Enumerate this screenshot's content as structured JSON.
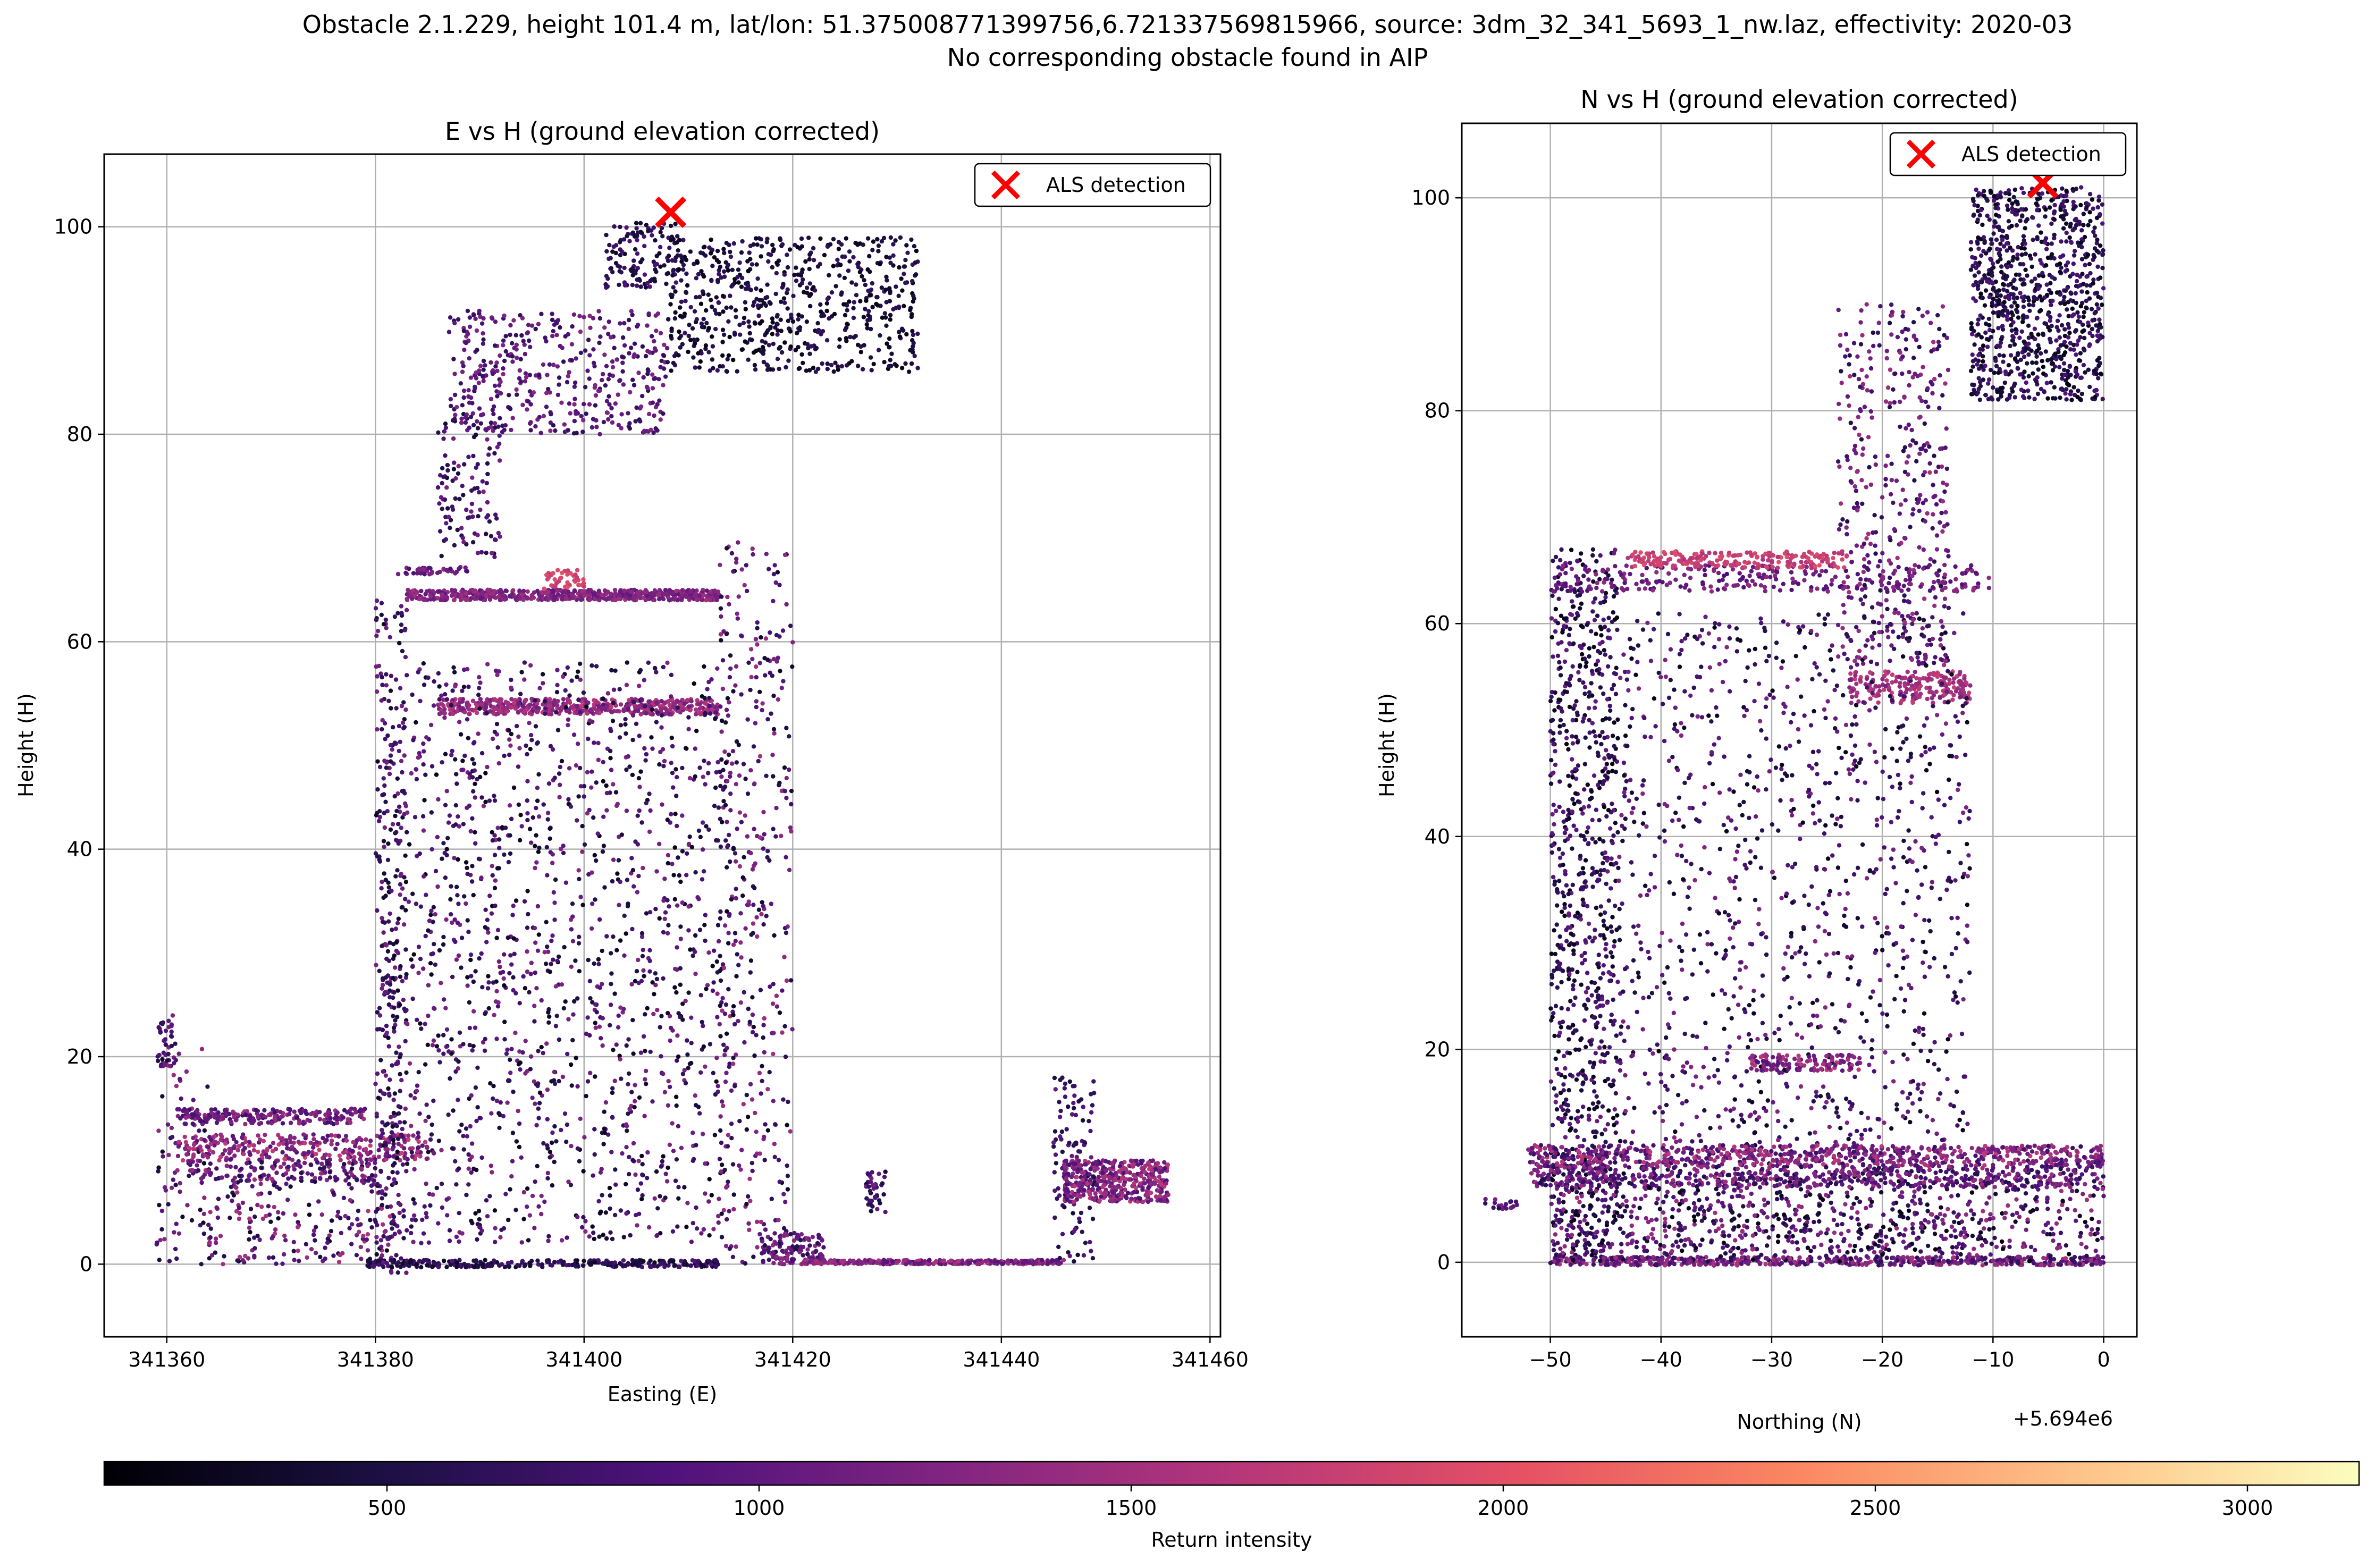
{
  "figure": {
    "title_line1": "Obstacle 2.1.229, height 101.4 m, lat/lon: 51.375008771399756,6.721337569815966, source: 3dm_32_341_5693_1_nw.laz, effectivity: 2020-03",
    "title_line2": "No corresponding obstacle found in AIP"
  },
  "chart_data": [
    {
      "type": "scatter",
      "title": "E vs H (ground elevation corrected)",
      "xlabel": "Easting (E)",
      "ylabel": "Height (H)",
      "xlim": [
        341354,
        341461
      ],
      "ylim": [
        -7,
        107
      ],
      "xticks": [
        341360,
        341380,
        341400,
        341420,
        341440,
        341460
      ],
      "xtick_labels": [
        "341360",
        "341380",
        "341400",
        "341420",
        "341440",
        "341460"
      ],
      "yticks": [
        0,
        20,
        40,
        60,
        80,
        100
      ],
      "ytick_labels": [
        "0",
        "20",
        "40",
        "60",
        "80",
        "100"
      ],
      "grid": true,
      "legend": {
        "position": "top-right",
        "entries": [
          "ALS detection"
        ]
      },
      "detection": {
        "x": 341408.3,
        "y": 101.4,
        "color": "#ff0000",
        "marker": "x"
      },
      "point_clusters": [
        {
          "x": [
            341359,
            341361
          ],
          "y": [
            19,
            24
          ],
          "n": 40,
          "intensity": [
            500,
            1300
          ]
        },
        {
          "x": [
            341359,
            341364
          ],
          "y": [
            0,
            21
          ],
          "n": 80,
          "intensity": [
            300,
            1500
          ]
        },
        {
          "x": [
            341361,
            341379
          ],
          "y": [
            13.5,
            15
          ],
          "n": 220,
          "intensity": [
            700,
            1500
          ]
        },
        {
          "x": [
            341361,
            341385
          ],
          "y": [
            10,
            12.5
          ],
          "n": 300,
          "intensity": [
            900,
            1800
          ]
        },
        {
          "x": [
            341362,
            341380
          ],
          "y": [
            8,
            10
          ],
          "n": 160,
          "intensity": [
            500,
            1500
          ]
        },
        {
          "x": [
            341364,
            341382
          ],
          "y": [
            0,
            8
          ],
          "n": 200,
          "intensity": [
            300,
            1600
          ]
        },
        {
          "x": [
            341379,
            341413
          ],
          "y": [
            -0.3,
            0.4
          ],
          "n": 300,
          "intensity": [
            300,
            900
          ]
        },
        {
          "x": [
            341380,
            341383
          ],
          "y": [
            -1,
            64
          ],
          "n": 380,
          "intensity": [
            300,
            1200
          ]
        },
        {
          "x": [
            341383,
            341413
          ],
          "y": [
            64,
            65
          ],
          "n": 600,
          "intensity": [
            1000,
            1500
          ]
        },
        {
          "x": [
            341396,
            341400
          ],
          "y": [
            65,
            67
          ],
          "n": 40,
          "intensity": [
            1700,
            2000
          ]
        },
        {
          "x": [
            341386,
            341413
          ],
          "y": [
            53,
            54.5
          ],
          "n": 500,
          "intensity": [
            1100,
            1700
          ]
        },
        {
          "x": [
            341383,
            341414
          ],
          "y": [
            2,
            58
          ],
          "n": 1400,
          "intensity": [
            250,
            1300
          ]
        },
        {
          "x": [
            341382,
            341389
          ],
          "y": [
            66.5,
            67.2
          ],
          "n": 40,
          "intensity": [
            800,
            1300
          ]
        },
        {
          "x": [
            341386,
            341392
          ],
          "y": [
            68,
            82
          ],
          "n": 120,
          "intensity": [
            400,
            1200
          ]
        },
        {
          "x": [
            341387,
            341408
          ],
          "y": [
            80,
            92
          ],
          "n": 420,
          "intensity": [
            600,
            1300
          ]
        },
        {
          "x": [
            341402,
            341409
          ],
          "y": [
            94,
            100.5
          ],
          "n": 120,
          "intensity": [
            300,
            900
          ]
        },
        {
          "x": [
            341408,
            341432
          ],
          "y": [
            86,
            99
          ],
          "n": 650,
          "intensity": [
            200,
            700
          ]
        },
        {
          "x": [
            341413,
            341420
          ],
          "y": [
            0,
            70
          ],
          "n": 380,
          "intensity": [
            300,
            1500
          ]
        },
        {
          "x": [
            341417,
            341423
          ],
          "y": [
            0,
            3
          ],
          "n": 120,
          "intensity": [
            500,
            1400
          ]
        },
        {
          "x": [
            341427,
            341429
          ],
          "y": [
            5,
            9
          ],
          "n": 40,
          "intensity": [
            400,
            1300
          ]
        },
        {
          "x": [
            341421,
            341446
          ],
          "y": [
            0,
            0.4
          ],
          "n": 320,
          "intensity": [
            900,
            1600
          ]
        },
        {
          "x": [
            341445,
            341449
          ],
          "y": [
            0,
            18
          ],
          "n": 120,
          "intensity": [
            400,
            1100
          ]
        },
        {
          "x": [
            341446,
            341456
          ],
          "y": [
            6,
            10
          ],
          "n": 420,
          "intensity": [
            800,
            1700
          ]
        }
      ]
    },
    {
      "type": "scatter",
      "title": "N vs H (ground elevation corrected)",
      "xlabel": "Northing (N)",
      "ylabel": "Height (H)",
      "offset_label": "+5.694e6",
      "xlim": [
        -58,
        3
      ],
      "ylim": [
        -7,
        107
      ],
      "xticks": [
        -50,
        -40,
        -30,
        -20,
        -10,
        0
      ],
      "xtick_labels": [
        "−50",
        "−40",
        "−30",
        "−20",
        "−10",
        "0"
      ],
      "yticks": [
        0,
        20,
        40,
        60,
        80,
        100
      ],
      "ytick_labels": [
        "0",
        "20",
        "40",
        "60",
        "80",
        "100"
      ],
      "grid": true,
      "legend": {
        "position": "top-right",
        "entries": [
          "ALS detection"
        ]
      },
      "detection": {
        "x": -5.5,
        "y": 101.4,
        "color": "#ff0000",
        "marker": "x"
      },
      "point_clusters": [
        {
          "x": [
            -56,
            -53
          ],
          "y": [
            5,
            6
          ],
          "n": 20,
          "intensity": [
            500,
            1200
          ]
        },
        {
          "x": [
            -50,
            -44
          ],
          "y": [
            0,
            67
          ],
          "n": 900,
          "intensity": [
            200,
            1100
          ]
        },
        {
          "x": [
            -50,
            -10
          ],
          "y": [
            63,
            65.5
          ],
          "n": 260,
          "intensity": [
            800,
            1400
          ]
        },
        {
          "x": [
            -43,
            -23
          ],
          "y": [
            65.2,
            66.8
          ],
          "n": 220,
          "intensity": [
            1600,
            2000
          ]
        },
        {
          "x": [
            -23,
            -12
          ],
          "y": [
            52.5,
            55.5
          ],
          "n": 200,
          "intensity": [
            1300,
            1800
          ]
        },
        {
          "x": [
            -44,
            -12
          ],
          "y": [
            1,
            61
          ],
          "n": 1300,
          "intensity": [
            250,
            1300
          ]
        },
        {
          "x": [
            -52,
            0
          ],
          "y": [
            9,
            11
          ],
          "n": 700,
          "intensity": [
            700,
            1700
          ]
        },
        {
          "x": [
            -52,
            0
          ],
          "y": [
            7,
            9
          ],
          "n": 600,
          "intensity": [
            500,
            1500
          ]
        },
        {
          "x": [
            -50,
            0
          ],
          "y": [
            -0.3,
            0.5
          ],
          "n": 500,
          "intensity": [
            600,
            1600
          ]
        },
        {
          "x": [
            -50,
            0
          ],
          "y": [
            0,
            7
          ],
          "n": 600,
          "intensity": [
            200,
            1500
          ]
        },
        {
          "x": [
            -32,
            -22
          ],
          "y": [
            18,
            19.5
          ],
          "n": 120,
          "intensity": [
            900,
            1700
          ]
        },
        {
          "x": [
            -24,
            -14
          ],
          "y": [
            56,
            90
          ],
          "n": 420,
          "intensity": [
            500,
            1500
          ]
        },
        {
          "x": [
            -12,
            0
          ],
          "y": [
            81,
            101
          ],
          "n": 900,
          "intensity": [
            200,
            900
          ]
        }
      ]
    }
  ],
  "colorbar": {
    "label": "Return intensity",
    "colormap": "magma",
    "range": [
      120,
      3150
    ],
    "ticks": [
      500,
      1000,
      1500,
      2000,
      2500,
      3000
    ],
    "tick_labels": [
      "500",
      "1000",
      "1500",
      "2000",
      "2500",
      "3000"
    ]
  }
}
